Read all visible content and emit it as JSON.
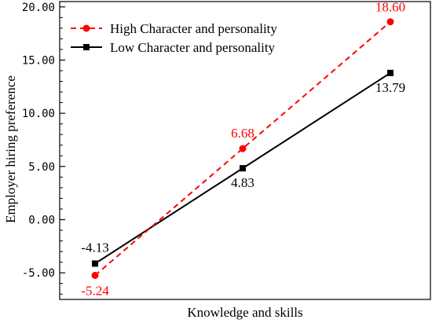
{
  "chart_data": {
    "type": "line",
    "xlabel": "Knowledge and skills",
    "ylabel": "Employer hiring preference",
    "ylim": [
      -7.5,
      20.5
    ],
    "yticks": [
      "20.00",
      "15.00",
      "10.00",
      "5.00",
      "0.00",
      "-5.00"
    ],
    "ytick_values": [
      20,
      15,
      10,
      5,
      0,
      -5
    ],
    "x": [
      1,
      2,
      3
    ],
    "grid": false,
    "legend_position": "top-left",
    "series": [
      {
        "name": "High Character and personality",
        "values": [
          -5.24,
          6.68,
          18.6
        ],
        "labels": [
          "-5.24",
          "6.68",
          "18.60"
        ],
        "color": "#ff0000",
        "line_style": "dashed",
        "marker": "circle"
      },
      {
        "name": "Low Character and personality",
        "values": [
          -4.13,
          4.83,
          13.79
        ],
        "labels": [
          "-4.13",
          "4.83",
          "13.79"
        ],
        "color": "#000000",
        "line_style": "solid",
        "marker": "square"
      }
    ]
  }
}
